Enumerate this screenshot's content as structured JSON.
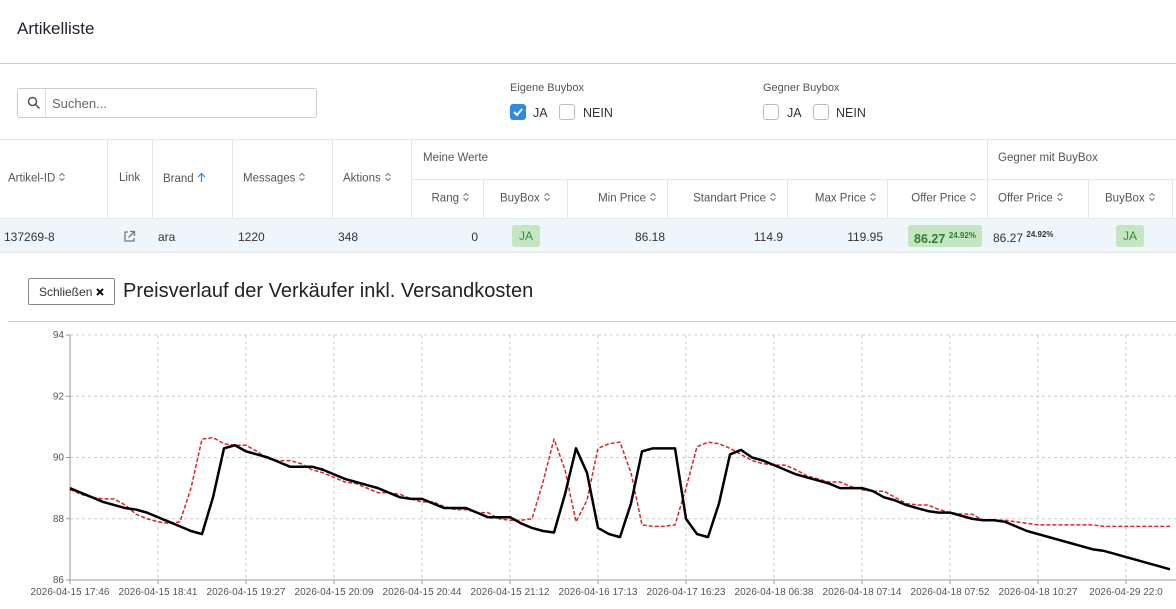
{
  "header": {
    "title": "Artikelliste"
  },
  "search": {
    "placeholder": "Suchen..."
  },
  "filters": [
    {
      "label": "Eigene Buybox",
      "options": [
        {
          "label": "JA",
          "checked": true
        },
        {
          "label": "NEIN",
          "checked": false
        }
      ]
    },
    {
      "label": "Gegner Buybox",
      "options": [
        {
          "label": "JA",
          "checked": false
        },
        {
          "label": "NEIN",
          "checked": false
        }
      ]
    }
  ],
  "table": {
    "columns": [
      "Artikel-ID",
      "Link",
      "Brand",
      "Messages",
      "Aktions"
    ],
    "groups": [
      "Meine Werte",
      "Gegner mit BuyBox"
    ],
    "subcolumns": [
      "Rang",
      "BuyBox",
      "Min Price",
      "Standart Price",
      "Max Price",
      "Offer Price",
      "Offer Price",
      "BuyBox"
    ],
    "rows": [
      {
        "artikel_id": "137269-8",
        "brand": "ara",
        "messages": 1220,
        "aktions": 348,
        "rang": 0,
        "buybox": "JA",
        "min_price": 86.18,
        "standart_price": 114.9,
        "max_price": 119.95,
        "offer_price": 86.27,
        "offer_percent": "24.92%",
        "gegner_offer_price": 86.27,
        "gegner_offer_percent": "24.92%",
        "gegner_buybox": "JA"
      }
    ]
  },
  "chart_panel": {
    "close_button": "Schließen",
    "title": "Preisverlauf der Verkäufer inkl. Versandkosten"
  },
  "chart_data": {
    "type": "line",
    "categories": [
      "2026-04-15 17:46",
      null,
      null,
      null,
      null,
      null,
      null,
      null,
      "2026-04-15 18:41",
      null,
      null,
      null,
      null,
      null,
      null,
      null,
      "2026-04-15 19:27",
      null,
      null,
      null,
      null,
      null,
      null,
      null,
      "2026-04-15 20:09",
      null,
      null,
      null,
      null,
      null,
      null,
      null,
      "2026-04-15 20:44",
      null,
      null,
      null,
      null,
      null,
      null,
      null,
      "2026-04-15 21:12",
      null,
      null,
      null,
      null,
      null,
      null,
      null,
      "2026-04-16 17:13",
      null,
      null,
      null,
      null,
      null,
      null,
      null,
      "2026-04-17 16:23",
      null,
      null,
      null,
      null,
      null,
      null,
      null,
      "2026-04-18 06:38",
      null,
      null,
      null,
      null,
      null,
      null,
      null,
      "2026-04-18 07:14",
      null,
      null,
      null,
      null,
      null,
      null,
      null,
      "2026-04-18 07:52",
      null,
      null,
      null,
      null,
      null,
      null,
      null,
      "2026-04-18 10:27",
      null,
      null,
      null,
      null,
      null,
      null,
      null,
      "2026-04-29 22:0",
      null,
      null,
      null,
      null
    ],
    "series": [
      {
        "color": "#d62728",
        "line_style": "dashed",
        "values": [
          88.95,
          88.8,
          88.7,
          88.65,
          88.65,
          88.45,
          88.15,
          88.0,
          87.9,
          87.85,
          87.9,
          89.0,
          90.6,
          90.65,
          90.45,
          90.4,
          90.4,
          90.2,
          89.95,
          89.9,
          89.9,
          89.8,
          89.6,
          89.5,
          89.35,
          89.2,
          89.15,
          89.0,
          88.85,
          88.85,
          88.8,
          88.65,
          88.55,
          88.55,
          88.4,
          88.3,
          88.3,
          88.2,
          88.2,
          88.0,
          87.95,
          87.95,
          88.0,
          89.2,
          90.6,
          89.6,
          87.9,
          88.6,
          90.3,
          90.45,
          90.5,
          89.5,
          87.8,
          87.75,
          87.75,
          87.8,
          89.0,
          90.35,
          90.5,
          90.45,
          90.3,
          90.1,
          89.9,
          89.8,
          89.75,
          89.75,
          89.6,
          89.4,
          89.3,
          89.2,
          89.2,
          89.05,
          88.95,
          88.9,
          88.9,
          88.7,
          88.5,
          88.45,
          88.45,
          88.3,
          88.2,
          88.15,
          88.15,
          87.95,
          87.95,
          87.95,
          87.9,
          87.85,
          87.8,
          87.8,
          87.8,
          87.8,
          87.8,
          87.8,
          87.75,
          87.75,
          87.75,
          87.75,
          87.75,
          87.75,
          87.75
        ]
      },
      {
        "color": "#000000",
        "line_style": "solid",
        "values": [
          89.0,
          88.85,
          88.7,
          88.55,
          88.45,
          88.35,
          88.3,
          88.2,
          88.05,
          87.9,
          87.75,
          87.6,
          87.5,
          88.7,
          90.3,
          90.4,
          90.2,
          90.1,
          90.0,
          89.85,
          89.7,
          89.7,
          89.7,
          89.6,
          89.45,
          89.3,
          89.2,
          89.1,
          89.0,
          88.85,
          88.7,
          88.65,
          88.65,
          88.5,
          88.35,
          88.35,
          88.35,
          88.2,
          88.05,
          88.05,
          88.05,
          87.85,
          87.7,
          87.6,
          87.55,
          88.8,
          90.3,
          89.5,
          87.7,
          87.5,
          87.4,
          88.5,
          90.2,
          90.3,
          90.3,
          90.3,
          88.0,
          87.5,
          87.4,
          88.5,
          90.1,
          90.25,
          90.0,
          89.9,
          89.75,
          89.6,
          89.45,
          89.35,
          89.25,
          89.15,
          89.0,
          89.0,
          89.0,
          88.9,
          88.7,
          88.6,
          88.45,
          88.35,
          88.25,
          88.2,
          88.2,
          88.1,
          88.0,
          87.95,
          87.95,
          87.9,
          87.75,
          87.6,
          87.5,
          87.4,
          87.3,
          87.2,
          87.1,
          87.0,
          86.95,
          86.85,
          86.75,
          86.65,
          86.55,
          86.45,
          86.35
        ]
      }
    ],
    "ylim": [
      86,
      94
    ],
    "yticks": [
      86,
      88,
      90,
      92,
      94
    ],
    "grid": true
  }
}
